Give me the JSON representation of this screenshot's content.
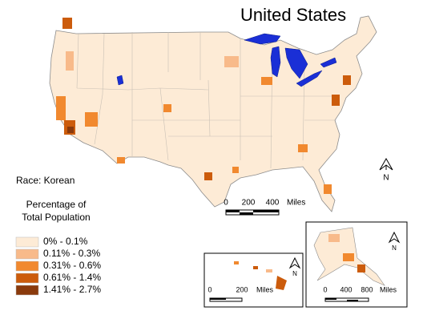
{
  "title": "United States",
  "subtitle": "Race: Korean",
  "legend": {
    "title_lines": [
      "Percentage of",
      "Total Population"
    ],
    "items": [
      {
        "label": "0% - 0.1%",
        "color": "#fdebd6"
      },
      {
        "label": "0.11% - 0.3%",
        "color": "#f8ba8a"
      },
      {
        "label": "0.31% - 0.6%",
        "color": "#f1892f"
      },
      {
        "label": "0.61% - 1.4%",
        "color": "#cc5c0c"
      },
      {
        "label": "1.41% - 2.7%",
        "color": "#8a3a0c"
      }
    ]
  },
  "scale_bars": {
    "mainland": [
      "0",
      "200",
      "400",
      "Miles"
    ],
    "hawaii": [
      "0",
      "200",
      "Miles"
    ],
    "alaska": [
      "0",
      "400",
      "800",
      "Miles"
    ]
  },
  "north_arrow_label": "N"
}
